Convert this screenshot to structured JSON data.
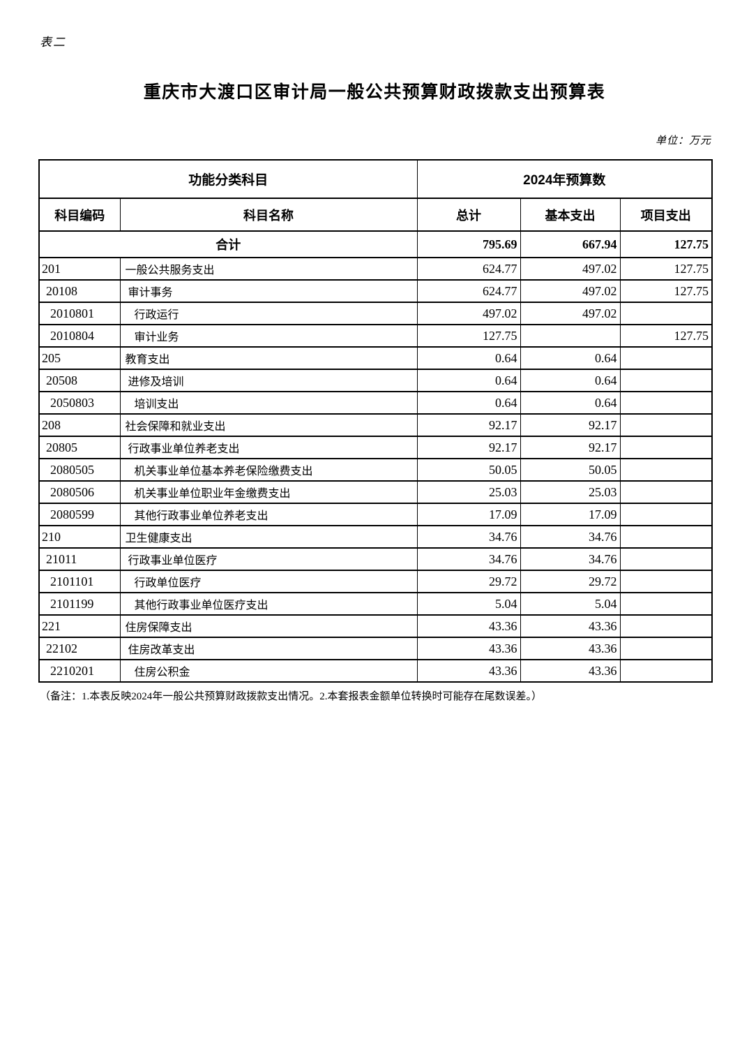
{
  "page": {
    "corner_label": "表二",
    "title": "重庆市大渡口区审计局一般公共预算财政拨款支出预算表",
    "unit_label": "单位：万元",
    "note": "（备注：1.本表反映2024年一般公共预算财政拨款支出情况。2.本套报表金额单位转换时可能存在尾数误差。）"
  },
  "colors": {
    "text": "#000000",
    "background": "#ffffff",
    "border": "#000000"
  },
  "table": {
    "header": {
      "functional_group": "功能分类科目",
      "budget_group": "2024年预算数",
      "code": "科目编码",
      "name": "科目名称",
      "total": "总计",
      "basic": "基本支出",
      "project": "项目支出"
    },
    "total_row": {
      "label": "合计",
      "total": "795.69",
      "basic": "667.94",
      "project": "127.75"
    },
    "rows": [
      {
        "code": "201",
        "name": "一般公共服务支出",
        "level": 1,
        "total": "624.77",
        "basic": "497.02",
        "project": "127.75"
      },
      {
        "code": "20108",
        "name": "审计事务",
        "level": 2,
        "total": "624.77",
        "basic": "497.02",
        "project": "127.75"
      },
      {
        "code": "2010801",
        "name": "行政运行",
        "level": 3,
        "total": "497.02",
        "basic": "497.02",
        "project": ""
      },
      {
        "code": "2010804",
        "name": "审计业务",
        "level": 3,
        "total": "127.75",
        "basic": "",
        "project": "127.75"
      },
      {
        "code": "205",
        "name": "教育支出",
        "level": 1,
        "total": "0.64",
        "basic": "0.64",
        "project": ""
      },
      {
        "code": "20508",
        "name": "进修及培训",
        "level": 2,
        "total": "0.64",
        "basic": "0.64",
        "project": ""
      },
      {
        "code": "2050803",
        "name": "培训支出",
        "level": 3,
        "total": "0.64",
        "basic": "0.64",
        "project": ""
      },
      {
        "code": "208",
        "name": "社会保障和就业支出",
        "level": 1,
        "total": "92.17",
        "basic": "92.17",
        "project": ""
      },
      {
        "code": "20805",
        "name": "行政事业单位养老支出",
        "level": 2,
        "total": "92.17",
        "basic": "92.17",
        "project": ""
      },
      {
        "code": "2080505",
        "name": "机关事业单位基本养老保险缴费支出",
        "level": 3,
        "total": "50.05",
        "basic": "50.05",
        "project": ""
      },
      {
        "code": "2080506",
        "name": "机关事业单位职业年金缴费支出",
        "level": 3,
        "total": "25.03",
        "basic": "25.03",
        "project": ""
      },
      {
        "code": "2080599",
        "name": "其他行政事业单位养老支出",
        "level": 3,
        "total": "17.09",
        "basic": "17.09",
        "project": ""
      },
      {
        "code": "210",
        "name": "卫生健康支出",
        "level": 1,
        "total": "34.76",
        "basic": "34.76",
        "project": ""
      },
      {
        "code": "21011",
        "name": "行政事业单位医疗",
        "level": 2,
        "total": "34.76",
        "basic": "34.76",
        "project": ""
      },
      {
        "code": "2101101",
        "name": "行政单位医疗",
        "level": 3,
        "total": "29.72",
        "basic": "29.72",
        "project": ""
      },
      {
        "code": "2101199",
        "name": "其他行政事业单位医疗支出",
        "level": 3,
        "total": "5.04",
        "basic": "5.04",
        "project": ""
      },
      {
        "code": "221",
        "name": "住房保障支出",
        "level": 1,
        "total": "43.36",
        "basic": "43.36",
        "project": ""
      },
      {
        "code": "22102",
        "name": "住房改革支出",
        "level": 2,
        "total": "43.36",
        "basic": "43.36",
        "project": ""
      },
      {
        "code": "2210201",
        "name": "住房公积金",
        "level": 3,
        "total": "43.36",
        "basic": "43.36",
        "project": ""
      }
    ]
  }
}
